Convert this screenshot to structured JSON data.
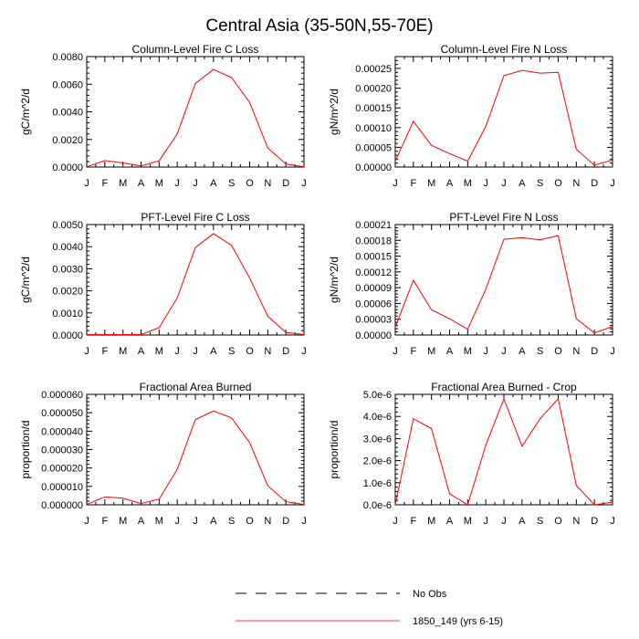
{
  "figure": {
    "title": "Central Asia (35-50N,55-70E)"
  },
  "legend": {
    "entries": [
      {
        "label": "No Obs",
        "style": "dashed",
        "color": "#000000"
      },
      {
        "label": "1850_149 (yrs 6-15)",
        "style": "solid",
        "color": "#ff0000"
      }
    ]
  },
  "chart_data": [
    {
      "type": "line",
      "title": "Column-Level Fire C Loss",
      "ylabel": "gC/m^2/d",
      "categories": [
        "J",
        "F",
        "M",
        "A",
        "M",
        "J",
        "J",
        "A",
        "S",
        "O",
        "N",
        "D",
        "J"
      ],
      "ylim": [
        0,
        0.008
      ],
      "yticks": [
        "0.0000",
        "0.0020",
        "0.0040",
        "0.0060",
        "0.0080"
      ],
      "ytick_values": [
        0,
        0.002,
        0.004,
        0.006,
        0.008
      ],
      "series": [
        {
          "name": "1850_149 (yrs 6-15)",
          "color": "#ff0000",
          "values": [
            2e-05,
            0.00047,
            0.0003,
            8e-05,
            0.00045,
            0.0024,
            0.00605,
            0.00707,
            0.00648,
            0.00468,
            0.00138,
            0.00022,
            2e-05
          ]
        }
      ]
    },
    {
      "type": "line",
      "title": "Column-Level Fire N Loss",
      "ylabel": "gN/m^2/d",
      "categories": [
        "J",
        "F",
        "M",
        "A",
        "M",
        "J",
        "J",
        "A",
        "S",
        "O",
        "N",
        "D",
        "J"
      ],
      "ylim": [
        0,
        0.00028
      ],
      "yticks": [
        "0.00000",
        "0.00005",
        "0.00010",
        "0.00015",
        "0.00020",
        "0.00025"
      ],
      "ytick_values": [
        0,
        5e-05,
        0.0001,
        0.00015,
        0.0002,
        0.00025
      ],
      "series": [
        {
          "name": "1850_149 (yrs 6-15)",
          "color": "#ff0000",
          "values": [
            1.5e-05,
            0.000116,
            5.5e-05,
            3.4e-05,
            1.5e-05,
            0.000103,
            0.000232,
            0.000245,
            0.000238,
            0.00024,
            4.5e-05,
            5e-06,
            1.8e-05
          ]
        }
      ]
    },
    {
      "type": "line",
      "title": "PFT-Level Fire C Loss",
      "ylabel": "gC/m^2/d",
      "categories": [
        "J",
        "F",
        "M",
        "A",
        "M",
        "J",
        "J",
        "A",
        "S",
        "O",
        "N",
        "D",
        "J"
      ],
      "ylim": [
        0,
        0.005
      ],
      "yticks": [
        "0.0000",
        "0.0010",
        "0.0020",
        "0.0030",
        "0.0040",
        "0.0050"
      ],
      "ytick_values": [
        0,
        0.001,
        0.002,
        0.003,
        0.004,
        0.005
      ],
      "series": [
        {
          "name": "1850_149 (yrs 6-15)",
          "color": "#ff0000",
          "values": [
            2e-05,
            2e-05,
            2e-05,
            2e-05,
            0.00033,
            0.00168,
            0.00396,
            0.00459,
            0.00406,
            0.00258,
            0.00085,
            0.00012,
            2e-05
          ]
        }
      ]
    },
    {
      "type": "line",
      "title": "PFT-Level Fire N Loss",
      "ylabel": "gN/m^2/d",
      "categories": [
        "J",
        "F",
        "M",
        "A",
        "M",
        "J",
        "J",
        "A",
        "S",
        "O",
        "N",
        "D",
        "J"
      ],
      "ylim": [
        0,
        0.00021
      ],
      "yticks": [
        "0.00000",
        "0.00003",
        "0.00006",
        "0.00009",
        "0.00012",
        "0.00015",
        "0.00018",
        "0.00021"
      ],
      "ytick_values": [
        0,
        3e-05,
        6e-05,
        9e-05,
        0.00012,
        0.00015,
        0.00018,
        0.00021
      ],
      "series": [
        {
          "name": "1850_149 (yrs 6-15)",
          "color": "#ff0000",
          "values": [
            1.5e-05,
            0.000104,
            4.8e-05,
            3.1e-05,
            1.1e-05,
            8.7e-05,
            0.000182,
            0.000185,
            0.000181,
            0.000189,
            3.1e-05,
            4e-06,
            1.6e-05
          ]
        }
      ]
    },
    {
      "type": "line",
      "title": "Fractional Area Burned",
      "ylabel": "proportion/d",
      "categories": [
        "J",
        "F",
        "M",
        "A",
        "M",
        "J",
        "J",
        "A",
        "S",
        "O",
        "N",
        "D",
        "J"
      ],
      "ylim": [
        0,
        6e-05
      ],
      "yticks": [
        "0.000000",
        "0.000010",
        "0.000020",
        "0.000030",
        "0.000040",
        "0.000050",
        "0.000060"
      ],
      "ytick_values": [
        0,
        1e-05,
        2e-05,
        3e-05,
        4e-05,
        5e-05,
        6e-05
      ],
      "series": [
        {
          "name": "1850_149 (yrs 6-15)",
          "color": "#ff0000",
          "values": [
            2e-07,
            4.3e-06,
            3.6e-06,
            7e-07,
            3.1e-06,
            1.93e-05,
            4.63e-05,
            5.1e-05,
            4.72e-05,
            3.38e-05,
            1.03e-05,
            1.7e-06,
            2e-07
          ]
        }
      ]
    },
    {
      "type": "line",
      "title": "Fractional Area Burned - Crop",
      "ylabel": "proportion/d",
      "categories": [
        "J",
        "F",
        "M",
        "A",
        "M",
        "J",
        "J",
        "A",
        "S",
        "O",
        "N",
        "D",
        "J"
      ],
      "ylim": [
        0,
        5e-06
      ],
      "yticks": [
        "0.0e-6",
        "1.0e-6",
        "2.0e-6",
        "3.0e-6",
        "4.0e-6",
        "5.0e-6"
      ],
      "ytick_values": [
        0,
        1e-06,
        2e-06,
        3e-06,
        4e-06,
        5e-06
      ],
      "series": [
        {
          "name": "1850_149 (yrs 6-15)",
          "color": "#ff0000",
          "values": [
            0.0,
            3.9e-06,
            3.45e-06,
            5e-07,
            0.0,
            2.7e-06,
            4.8e-06,
            2.65e-06,
            3.9e-06,
            4.8e-06,
            8.8e-07,
            0.0,
            1.2e-07
          ]
        }
      ]
    }
  ]
}
